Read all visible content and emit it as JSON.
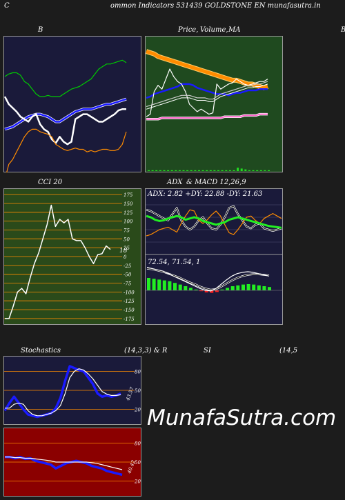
{
  "header": {
    "left": "C",
    "title": "ommon  Indicators 531439 GOLDSTONE EN  munafasutra.in"
  },
  "titles": {
    "b": "B",
    "price": "Price,",
    "volume": "Volume,",
    "ma": "MA",
    "clipped_right": "B",
    "cci": "CCI 20",
    "adx": "ADX",
    "macd": "& MACD 12,26,9",
    "stoch": "Stochastics",
    "stoch_params": "(14,3,3) & R",
    "rsi": "SI",
    "rsi_params": "(14,5"
  },
  "watermark": "MunafaSutra.com",
  "colors": {
    "navy": "#1a1a3a",
    "green_bg": "#1f4a1f",
    "olive_bg": "#2a4a1a",
    "red_bg": "#8b0000",
    "blue": "#1a1aff",
    "orange": "#ff8c00",
    "lime": "#22ee22",
    "pink": "#ff66cc"
  },
  "chart_data": [
    {
      "type": "line",
      "title": "B",
      "series": [
        {
          "values": [
            0.72,
            0.74,
            0.75,
            0.75,
            0.73,
            0.68,
            0.66,
            0.62,
            0.58,
            0.56,
            0.56,
            0.57,
            0.56,
            0.56,
            0.56,
            0.58,
            0.6,
            0.62,
            0.63,
            0.64,
            0.66,
            0.68,
            0.7,
            0.74,
            0.78,
            0.8,
            0.82,
            0.82,
            0.83,
            0.84,
            0.85,
            0.83
          ],
          "color": "#00cc00"
        },
        {
          "values": [
            0.3,
            0.31,
            0.32,
            0.34,
            0.36,
            0.38,
            0.4,
            0.41,
            0.42,
            0.42,
            0.41,
            0.4,
            0.38,
            0.36,
            0.36,
            0.38,
            0.4,
            0.42,
            0.44,
            0.45,
            0.46,
            0.46,
            0.46,
            0.47,
            0.48,
            0.49,
            0.5,
            0.5,
            0.51,
            0.52,
            0.53,
            0.54
          ],
          "color": "#1a1aff"
        },
        {
          "values": [
            0.56,
            0.5,
            0.47,
            0.44,
            0.4,
            0.38,
            0.36,
            0.4,
            0.42,
            0.34,
            0.3,
            0.28,
            0.22,
            0.19,
            0.24,
            0.2,
            0.18,
            0.2,
            0.38,
            0.4,
            0.42,
            0.42,
            0.4,
            0.38,
            0.36,
            0.36,
            0.38,
            0.4,
            0.42,
            0.45,
            0.46,
            0.46
          ],
          "color": "#ffffff"
        },
        {
          "values": [
            -0.1,
            0.02,
            0.06,
            0.12,
            0.18,
            0.24,
            0.28,
            0.3,
            0.3,
            0.28,
            0.27,
            0.26,
            0.24,
            0.18,
            0.16,
            0.14,
            0.13,
            0.14,
            0.15,
            0.14,
            0.14,
            0.12,
            0.13,
            0.12,
            0.13,
            0.14,
            0.14,
            0.13,
            0.13,
            0.14,
            0.18,
            0.28
          ],
          "color": "#ff8c00"
        }
      ]
    },
    {
      "type": "line",
      "title": "Price, Volume, MA",
      "series": [
        {
          "values": [
            0.92,
            0.91,
            0.9,
            0.88,
            0.87,
            0.86,
            0.85,
            0.84,
            0.83,
            0.82,
            0.81,
            0.8,
            0.79,
            0.78,
            0.77,
            0.76,
            0.75,
            0.74,
            0.73,
            0.72,
            0.71,
            0.7,
            0.69,
            0.69,
            0.68,
            0.67,
            0.66,
            0.66,
            0.65,
            0.64,
            0.63,
            0.64
          ],
          "color": "#ff8c00"
        },
        {
          "values": [
            0.55,
            0.56,
            0.58,
            0.59,
            0.6,
            0.61,
            0.62,
            0.63,
            0.64,
            0.66,
            0.66,
            0.66,
            0.65,
            0.63,
            0.62,
            0.61,
            0.6,
            0.59,
            0.58,
            0.58,
            0.58,
            0.57,
            0.58,
            0.59,
            0.59,
            0.6,
            0.61,
            0.61,
            0.61,
            0.62,
            0.62,
            0.62
          ],
          "color": "#1a1aff"
        },
        {
          "values": [
            0.4,
            0.42,
            0.6,
            0.65,
            0.62,
            0.7,
            0.78,
            0.72,
            0.68,
            0.66,
            0.6,
            0.5,
            0.47,
            0.44,
            0.46,
            0.44,
            0.42,
            0.43,
            0.66,
            0.62,
            0.64,
            0.66,
            0.67,
            0.7,
            0.68,
            0.66,
            0.65,
            0.66,
            0.67,
            0.68,
            0.68,
            0.7
          ],
          "color": "#ffffff"
        },
        {
          "values": [
            0.48,
            0.49,
            0.5,
            0.51,
            0.52,
            0.53,
            0.54,
            0.55,
            0.56,
            0.57,
            0.57,
            0.57,
            0.56,
            0.55,
            0.55,
            0.55,
            0.54,
            0.54,
            0.56,
            0.58,
            0.59,
            0.6,
            0.61,
            0.62,
            0.63,
            0.64,
            0.65,
            0.65,
            0.66,
            0.66,
            0.67,
            0.68
          ],
          "color": "#cccccc"
        },
        {
          "values": [
            0.38,
            0.38,
            0.38,
            0.38,
            0.39,
            0.39,
            0.39,
            0.39,
            0.39,
            0.39,
            0.39,
            0.39,
            0.39,
            0.39,
            0.39,
            0.39,
            0.39,
            0.39,
            0.39,
            0.39,
            0.4,
            0.4,
            0.4,
            0.4,
            0.4,
            0.41,
            0.41,
            0.41,
            0.41,
            0.42,
            0.42,
            0.42
          ],
          "color": "#ff66cc"
        }
      ],
      "volume": [
        0.01,
        0.01,
        0.01,
        0.01,
        0.01,
        0.01,
        0.01,
        0.01,
        0.01,
        0.01,
        0.01,
        0.01,
        0.01,
        0.01,
        0.01,
        0.01,
        0.01,
        0.01,
        0.01,
        0.01,
        0.01,
        0.01,
        0.01,
        0.04,
        0.03,
        0.02,
        0.01,
        0.01,
        0.01,
        0.01,
        0.01,
        0.01
      ]
    },
    {
      "type": "line",
      "title": "CCI 20",
      "ylim": [
        -185,
        185
      ],
      "yticks": [
        175,
        150,
        125,
        100,
        75,
        50,
        25,
        0,
        -25,
        -50,
        -75,
        -100,
        -125,
        -150,
        -175
      ],
      "values": [
        -175,
        -175,
        -140,
        -100,
        -90,
        -105,
        -60,
        -20,
        10,
        50,
        90,
        145,
        85,
        105,
        95,
        105,
        50,
        45,
        45,
        25,
        0,
        -20,
        5,
        8,
        30,
        20
      ],
      "value_label": "18"
    },
    {
      "type": "line",
      "title": "ADX & MACD 12,26,9",
      "adx_label": "ADX: 2.82  +DY: 22.88  -DY: 21.63",
      "macd_label": "72.54,  71.54,  1",
      "adx": [
        0.62,
        0.6,
        0.56,
        0.54,
        0.55,
        0.58,
        0.6,
        0.62,
        0.6,
        0.56,
        0.58,
        0.6,
        0.58,
        0.54,
        0.52,
        0.5,
        0.48,
        0.5,
        0.52,
        0.56,
        0.58,
        0.6,
        0.58,
        0.56,
        0.54,
        0.52,
        0.5,
        0.48,
        0.46,
        0.45,
        0.44,
        0.43
      ],
      "plus_di": [
        0.72,
        0.7,
        0.66,
        0.62,
        0.58,
        0.55,
        0.65,
        0.75,
        0.55,
        0.45,
        0.4,
        0.45,
        0.55,
        0.6,
        0.5,
        0.42,
        0.4,
        0.48,
        0.6,
        0.75,
        0.78,
        0.65,
        0.55,
        0.45,
        0.42,
        0.48,
        0.5,
        0.42,
        0.4,
        0.38,
        0.4,
        0.42
      ],
      "minus_di": [
        0.3,
        0.32,
        0.36,
        0.4,
        0.42,
        0.44,
        0.4,
        0.36,
        0.5,
        0.62,
        0.72,
        0.7,
        0.55,
        0.5,
        0.56,
        0.64,
        0.7,
        0.62,
        0.48,
        0.35,
        0.32,
        0.4,
        0.5,
        0.6,
        0.62,
        0.55,
        0.5,
        0.58,
        0.62,
        0.66,
        0.62,
        0.58
      ],
      "macd": [
        0.82,
        0.8,
        0.78,
        0.76,
        0.72,
        0.68,
        0.64,
        0.6,
        0.56,
        0.52,
        0.48,
        0.45,
        0.44,
        0.48,
        0.55,
        0.62,
        0.68,
        0.72,
        0.74,
        0.75,
        0.74,
        0.72,
        0.7,
        0.68
      ],
      "signal": [
        0.8,
        0.79,
        0.77,
        0.75,
        0.72,
        0.69,
        0.66,
        0.62,
        0.58,
        0.55,
        0.51,
        0.48,
        0.46,
        0.47,
        0.51,
        0.56,
        0.61,
        0.65,
        0.68,
        0.7,
        0.71,
        0.71,
        0.7,
        0.69
      ],
      "hist": [
        0.3,
        0.28,
        0.26,
        0.24,
        0.22,
        0.18,
        0.14,
        0.1,
        0.06,
        0.02,
        -0.02,
        -0.05,
        -0.06,
        -0.04,
        0.02,
        0.06,
        0.1,
        0.12,
        0.14,
        0.15,
        0.14,
        0.12,
        0.1,
        0.08
      ]
    },
    {
      "type": "line",
      "title": "Stochastics (14,3,3)",
      "ylim": [
        0,
        100
      ],
      "yticks": [
        80,
        50,
        20
      ],
      "k": [
        18,
        30,
        40,
        30,
        20,
        12,
        10,
        8,
        10,
        12,
        14,
        22,
        38,
        65,
        88,
        85,
        82,
        80,
        70,
        60,
        45,
        40,
        42,
        40,
        42,
        45
      ],
      "d": [
        22,
        22,
        28,
        30,
        28,
        18,
        12,
        10,
        10,
        12,
        14,
        18,
        26,
        45,
        70,
        80,
        84,
        82,
        76,
        68,
        58,
        48,
        44,
        42,
        42,
        43
      ],
      "value_label": "43.57"
    },
    {
      "type": "line",
      "title": "RSI (14,5",
      "ylim": [
        0,
        100
      ],
      "yticks": [
        80,
        50,
        20
      ],
      "rsi": [
        58,
        58,
        56,
        58,
        55,
        56,
        52,
        50,
        48,
        46,
        40,
        44,
        48,
        50,
        52,
        50,
        48,
        44,
        42,
        40,
        36,
        34,
        32,
        30
      ],
      "smoothed": [
        58,
        58,
        57,
        57,
        56,
        56,
        55,
        54,
        53,
        52,
        50,
        50,
        50,
        50,
        50,
        50,
        50,
        49,
        48,
        46,
        44,
        42,
        40,
        38
      ],
      "value_label": "40.42"
    }
  ]
}
